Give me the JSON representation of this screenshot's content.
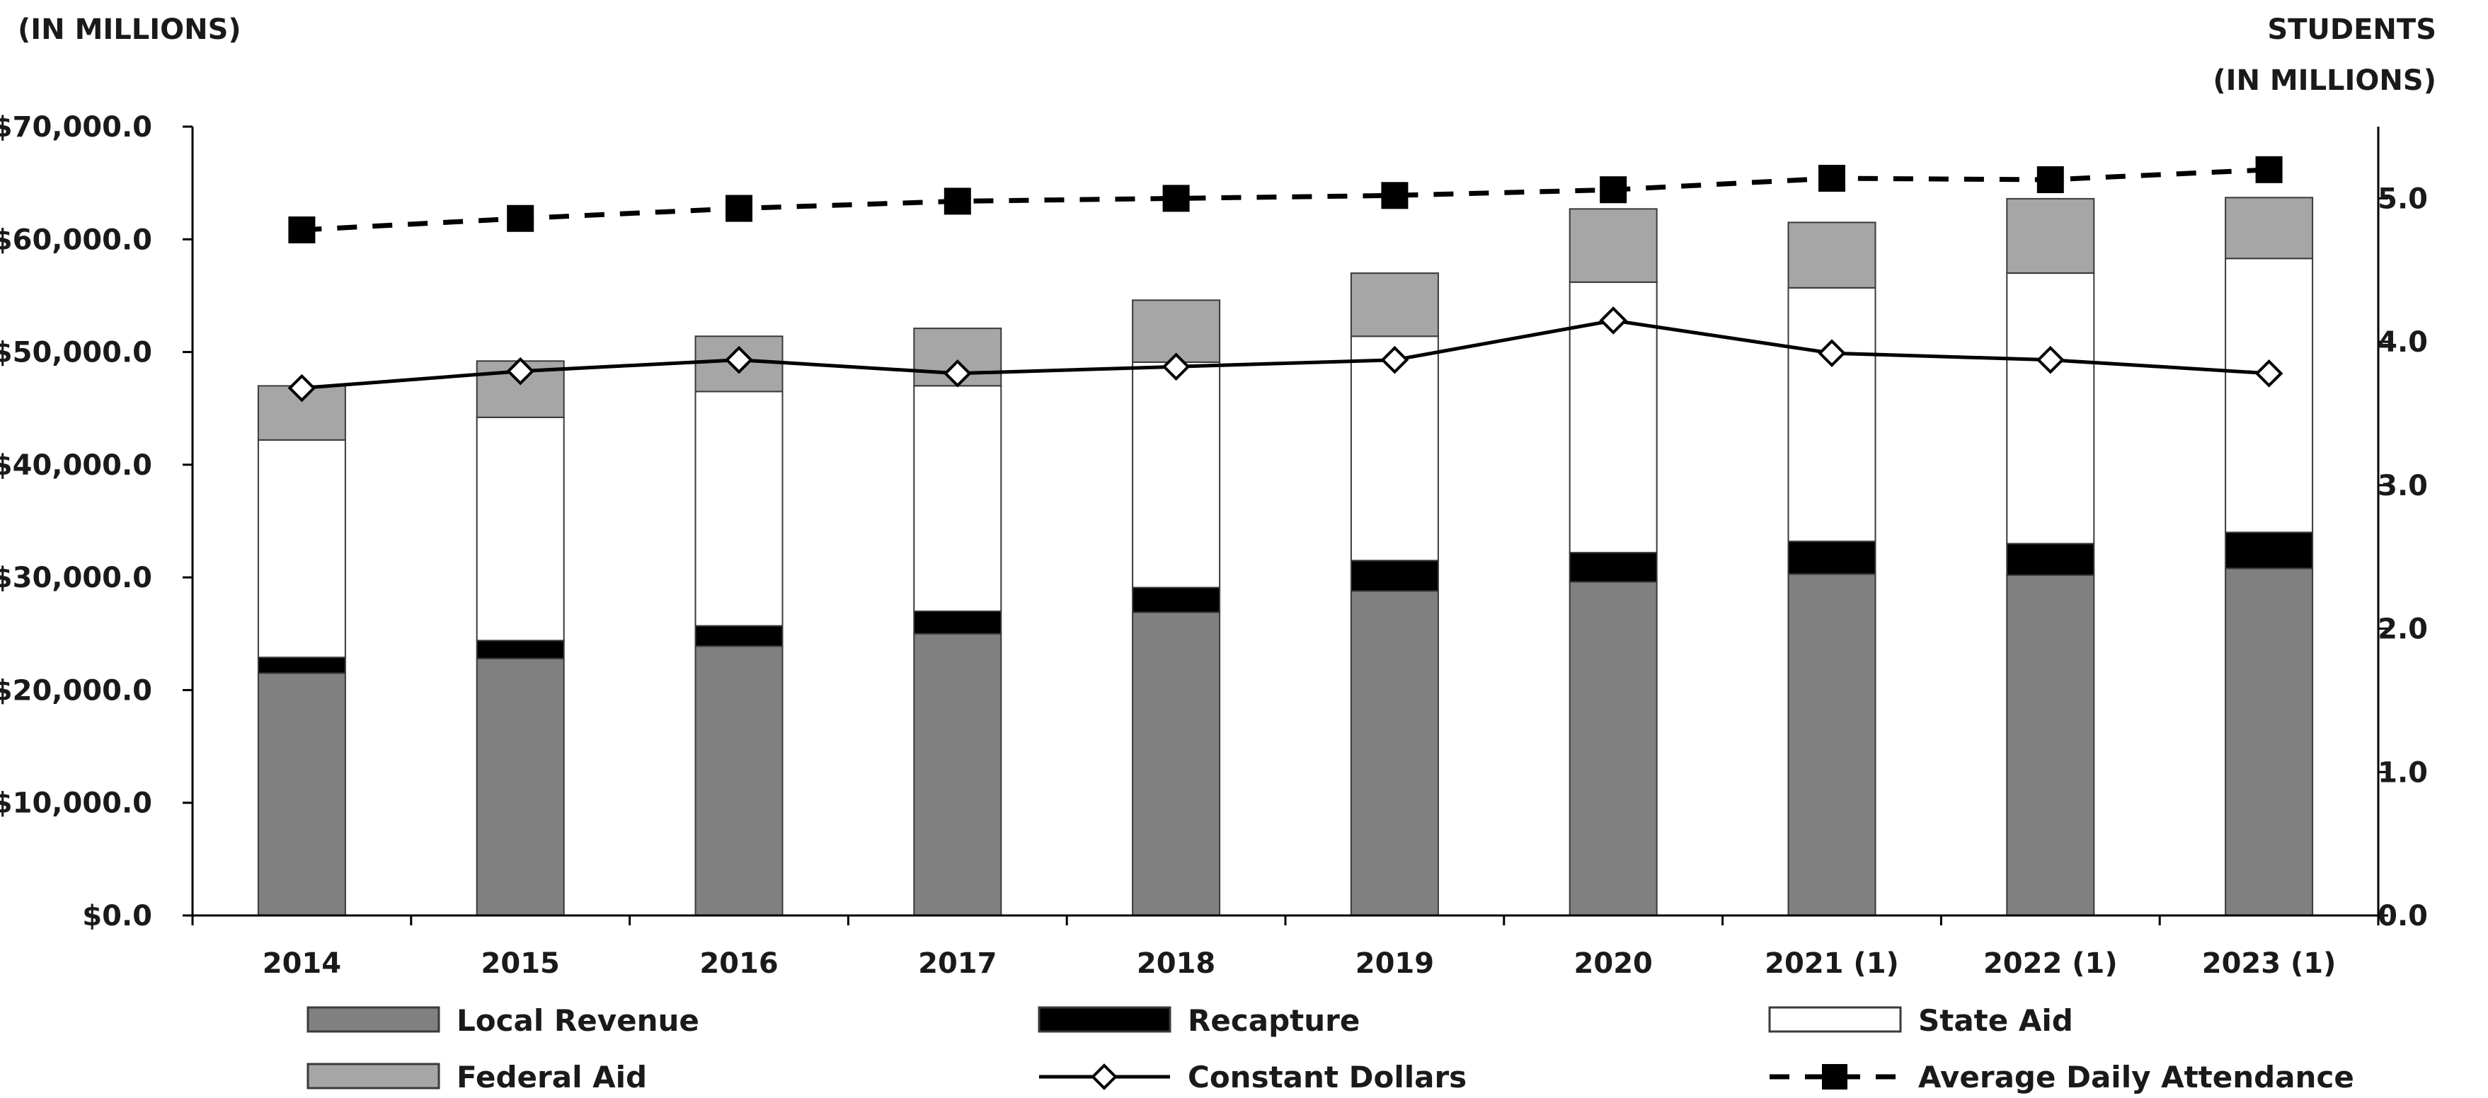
{
  "chart_data": {
    "type": "bar",
    "stacked": true,
    "left_axis_title": "(IN MILLIONS)",
    "right_axis_title_line1": "STUDENTS",
    "right_axis_title_line2": "(IN MILLIONS)",
    "y_left_range": [
      0,
      70000
    ],
    "y_left_ticks": [
      "$0.0",
      "$10,000.0",
      "$20,000.0",
      "$30,000.0",
      "$40,000.0",
      "$50,000.0",
      "$60,000.0",
      "$70,000.0"
    ],
    "y_right_range": [
      0,
      5.5
    ],
    "y_right_ticks": [
      "0.0",
      "1.0",
      "2.0",
      "3.0",
      "4.0",
      "5.0"
    ],
    "grid": false,
    "legend_position": "bottom",
    "categories": [
      "2014",
      "2015",
      "2016",
      "2017",
      "2018",
      "2019",
      "2020",
      "2021 (1)",
      "2022 (1)",
      "2023 (1)"
    ],
    "series": [
      {
        "name": "Local Revenue",
        "kind": "bar",
        "color": "#808080",
        "values": [
          21500,
          22800,
          23900,
          25000,
          26900,
          28800,
          29600,
          30300,
          30200,
          30800
        ]
      },
      {
        "name": "Recapture",
        "kind": "bar",
        "color": "#000000",
        "values": [
          1400,
          1600,
          1800,
          2000,
          2200,
          2700,
          2600,
          2900,
          2800,
          3200
        ]
      },
      {
        "name": "State Aid",
        "kind": "bar",
        "color": "#ffffff",
        "values": [
          19300,
          19800,
          20800,
          20000,
          20000,
          19900,
          24000,
          22500,
          24000,
          24300
        ]
      },
      {
        "name": "Federal Aid",
        "kind": "bar",
        "color": "#a6a6a6",
        "values": [
          4800,
          5000,
          4900,
          5100,
          5500,
          5600,
          6500,
          5800,
          6600,
          5400
        ]
      },
      {
        "name": "Constant Dollars",
        "kind": "line",
        "axis": "left",
        "marker": "diamond",
        "values": [
          46800,
          48300,
          49300,
          48100,
          48700,
          49300,
          52800,
          49900,
          49300,
          48100
        ]
      },
      {
        "name": "Average Daily Attendance",
        "kind": "dashed-line",
        "axis": "right",
        "marker": "square",
        "values": [
          4.78,
          4.86,
          4.93,
          4.98,
          5.0,
          5.02,
          5.06,
          5.14,
          5.13,
          5.2
        ]
      }
    ]
  }
}
